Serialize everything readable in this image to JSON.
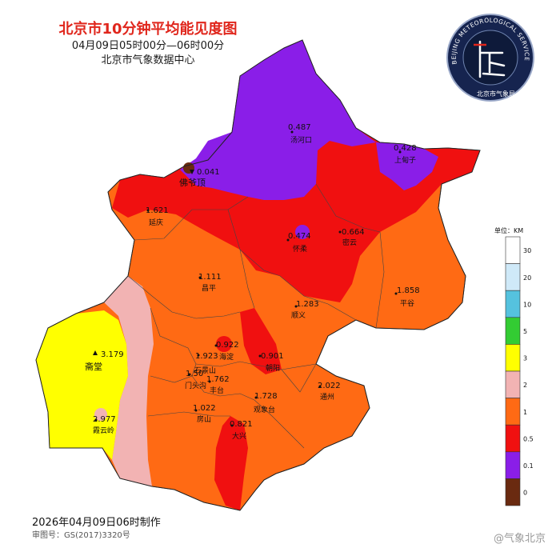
{
  "header": {
    "title": "北京市10分钟平均能见度图",
    "time_range": "04月09日05时00分—06时00分",
    "issuer": "北京市气象数据中心"
  },
  "logo": {
    "ring_text": "BEIJING METEOROLOGICAL SERVICE",
    "inner_text": "北京市气象局"
  },
  "footer": {
    "made_time": "2026年04月09日06时制作",
    "approval": "审图号：GS(2017)3320号"
  },
  "watermark": "@气象北京",
  "legend": {
    "title": "单位：KM",
    "levels": [
      {
        "label": "30",
        "color": "#ffffff"
      },
      {
        "label": "20",
        "color": "#cfe9f8"
      },
      {
        "label": "10",
        "color": "#55c2de"
      },
      {
        "label": "5",
        "color": "#33cc33"
      },
      {
        "label": "3",
        "color": "#ffff00"
      },
      {
        "label": "2",
        "color": "#f2b3b3"
      },
      {
        "label": "1",
        "color": "#ff6a14"
      },
      {
        "label": "0.5",
        "color": "#f01010"
      },
      {
        "label": "0.1",
        "color": "#8a1ee8"
      },
      {
        "label": "0",
        "color": "#6a2a10"
      }
    ]
  },
  "stations": [
    {
      "value": "0.487",
      "name": "汤河口"
    },
    {
      "value": "0.428",
      "name": "上甸子"
    },
    {
      "value": "0.041",
      "name": "佛爷顶"
    },
    {
      "value": "1.621",
      "name": "延庆"
    },
    {
      "value": "0.474",
      "name": "怀柔"
    },
    {
      "value": "0.664",
      "name": "密云"
    },
    {
      "value": "1.111",
      "name": "昌平"
    },
    {
      "value": "1.858",
      "name": "平谷"
    },
    {
      "value": "1.283",
      "name": "顺义"
    },
    {
      "value": "3.179",
      "name": "斋堂"
    },
    {
      "value": "0.922",
      "name": "海淀"
    },
    {
      "value": "1.923",
      "name": "石景山"
    },
    {
      "value": "0.901",
      "name": "朝阳"
    },
    {
      "value": "1.50",
      "name": "门头沟"
    },
    {
      "value": "1.762",
      "name": "丰台"
    },
    {
      "value": "2.022",
      "name": "通州"
    },
    {
      "value": "1.728",
      "name": "观象台"
    },
    {
      "value": "2.977",
      "name": "霞云岭"
    },
    {
      "value": "1.022",
      "name": "房山"
    },
    {
      "value": "0.821",
      "name": "大兴"
    }
  ],
  "colors": {
    "purple": "#8a1ee8",
    "red": "#f01010",
    "orange": "#ff6a14",
    "yellow": "#ffff00",
    "pink": "#f2b3b3",
    "brown": "#6a2a10",
    "title_red": "#e0261c"
  }
}
